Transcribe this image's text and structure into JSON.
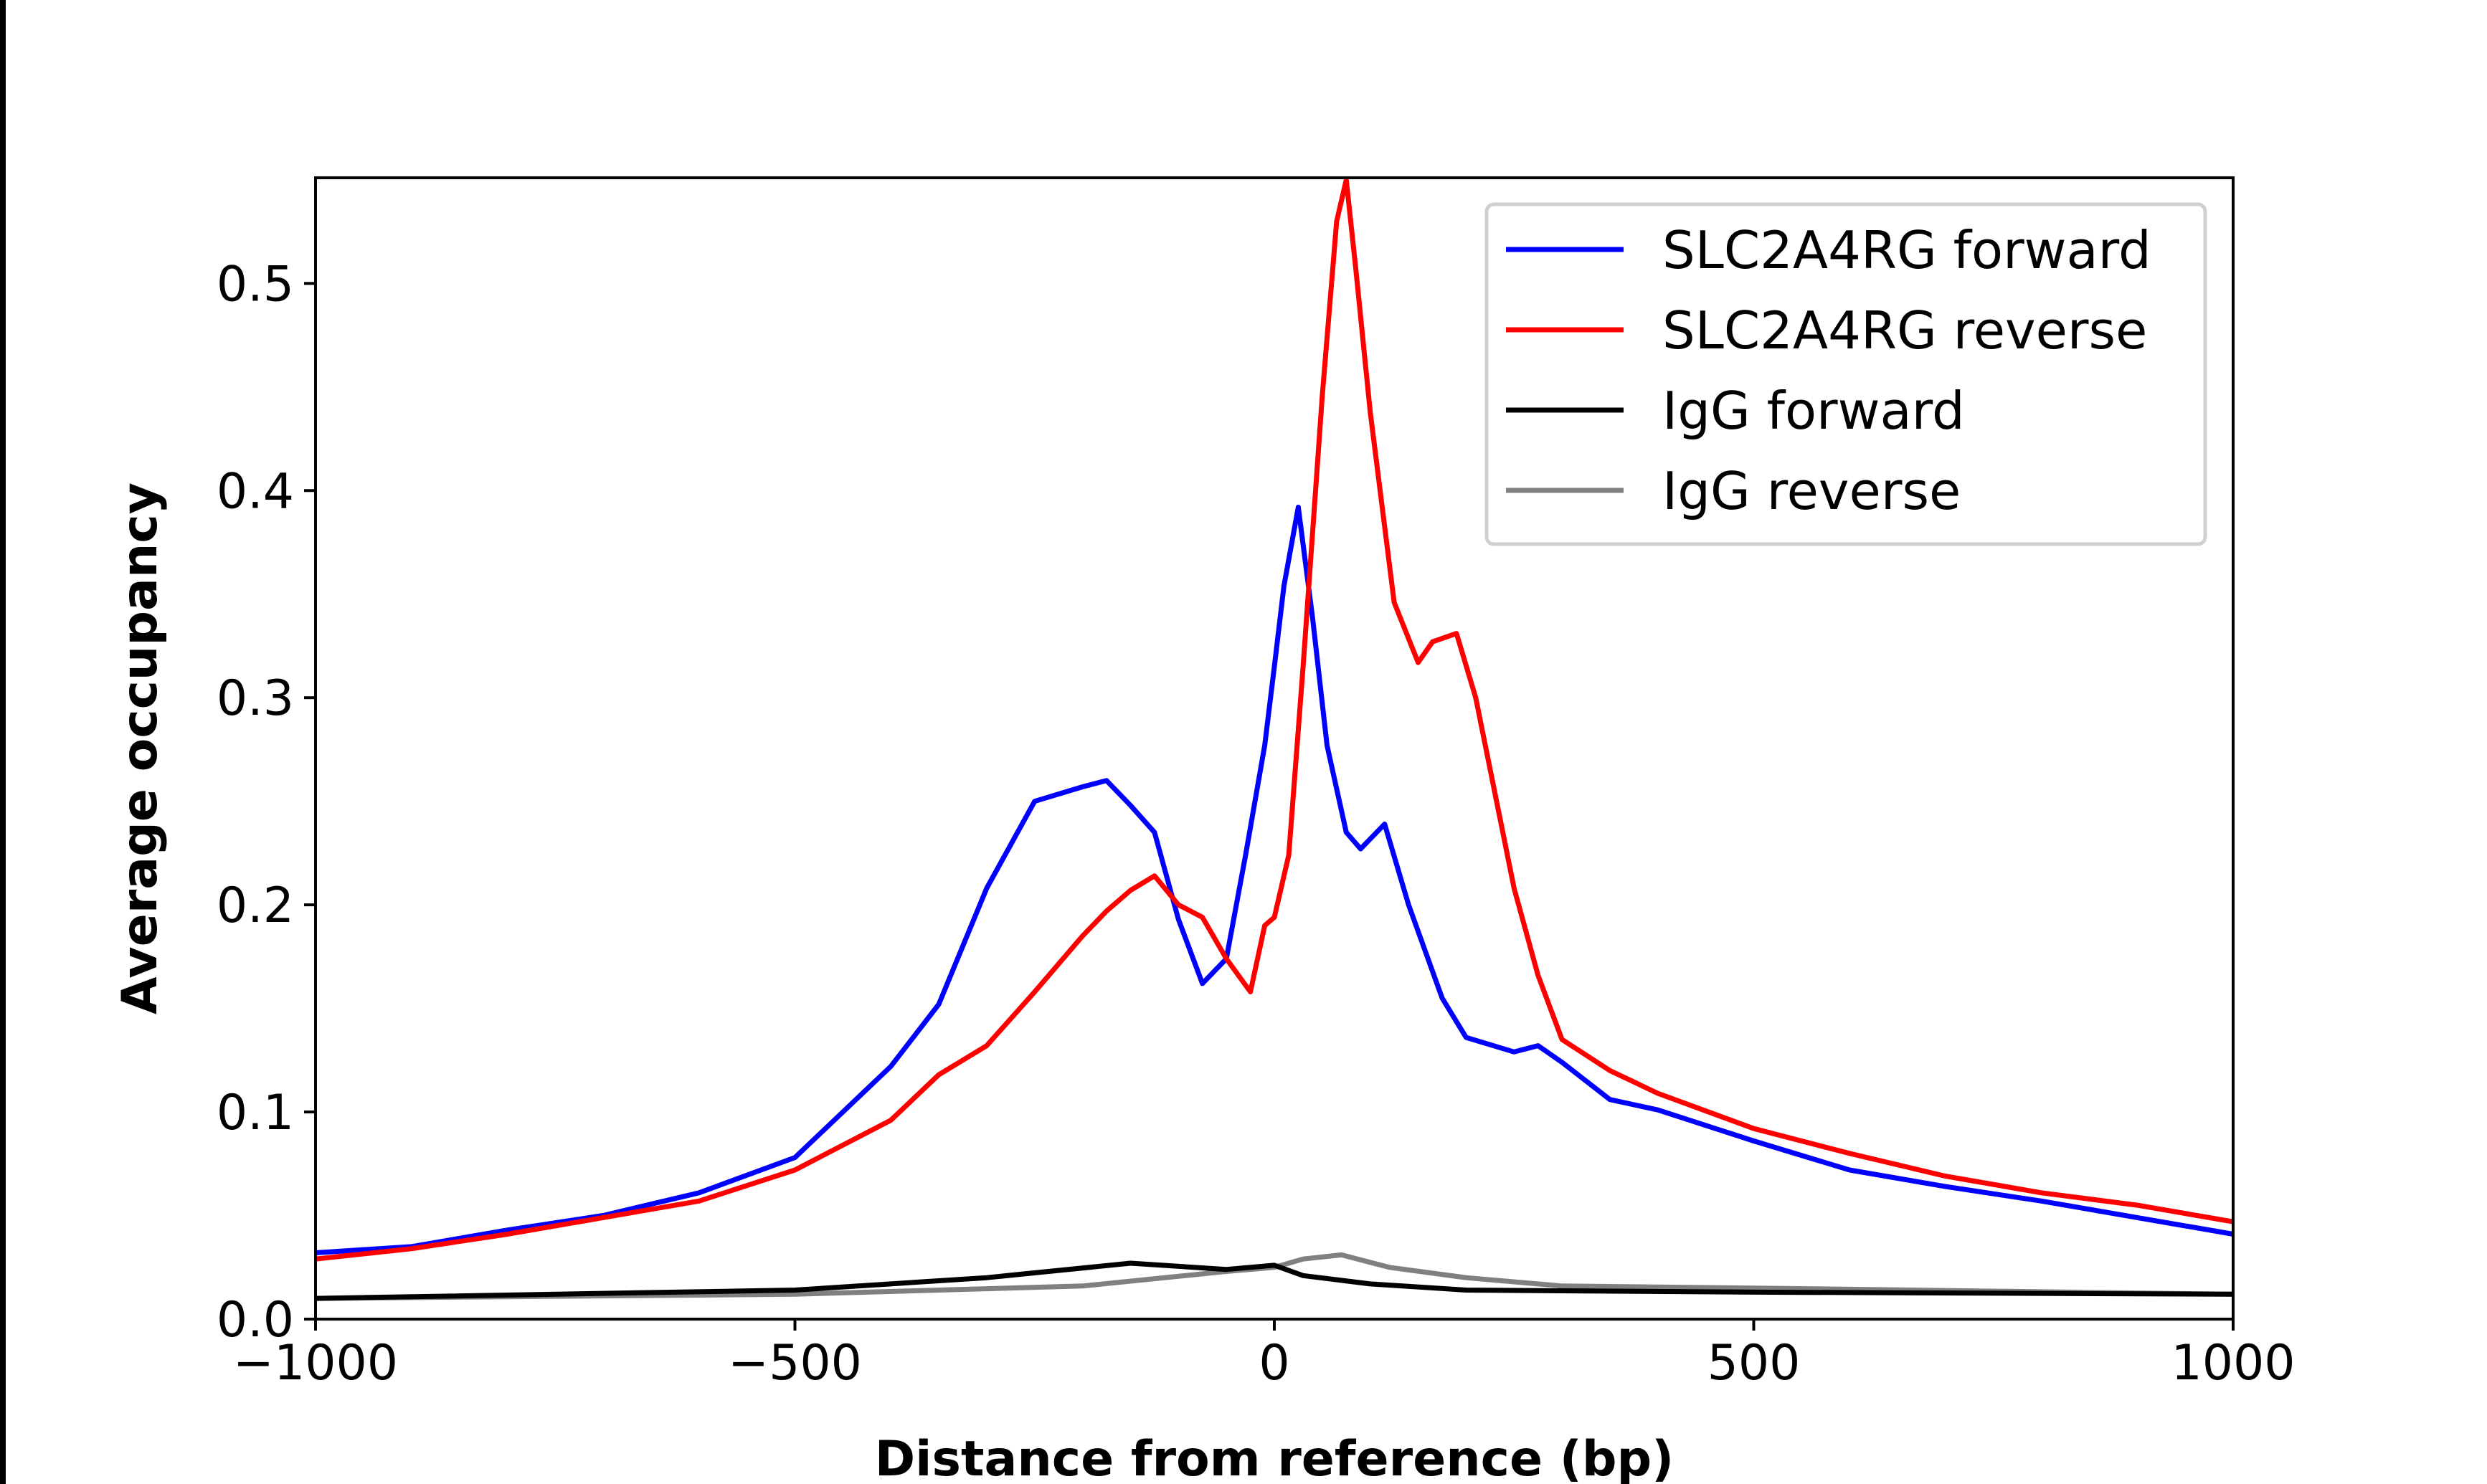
{
  "chart_data": {
    "type": "line",
    "title": "",
    "xlabel": "Distance from reference (bp)",
    "ylabel": "Average occupancy",
    "xlim": [
      -1000,
      1000
    ],
    "ylim": [
      0,
      0.551
    ],
    "xticks": [
      -1000,
      -500,
      0,
      500,
      1000
    ],
    "xtick_labels": [
      "−1000",
      "−500",
      "0",
      "500",
      "1000"
    ],
    "yticks": [
      0.0,
      0.1,
      0.2,
      0.3,
      0.4,
      0.5
    ],
    "ytick_labels": [
      "0.0",
      "0.1",
      "0.2",
      "0.3",
      "0.4",
      "0.5"
    ],
    "grid": false,
    "legend_position": "top-right",
    "series": [
      {
        "name": "SLC2A4RG forward",
        "color": "#0000ff",
        "x": [
          -1000,
          -900,
          -800,
          -700,
          -600,
          -500,
          -450,
          -400,
          -350,
          -300,
          -250,
          -200,
          -175,
          -150,
          -125,
          -100,
          -75,
          -50,
          -30,
          -10,
          0,
          10,
          25,
          40,
          55,
          75,
          90,
          115,
          140,
          175,
          200,
          250,
          275,
          300,
          350,
          400,
          500,
          600,
          700,
          800,
          900,
          1000
        ],
        "y": [
          0.032,
          0.035,
          0.043,
          0.05,
          0.061,
          0.078,
          0.1,
          0.122,
          0.152,
          0.208,
          0.25,
          0.257,
          0.26,
          0.248,
          0.235,
          0.193,
          0.162,
          0.174,
          0.224,
          0.277,
          0.315,
          0.354,
          0.392,
          0.338,
          0.277,
          0.235,
          0.227,
          0.239,
          0.2,
          0.155,
          0.136,
          0.129,
          0.132,
          0.124,
          0.106,
          0.101,
          0.086,
          0.072,
          0.064,
          0.057,
          0.049,
          0.041
        ]
      },
      {
        "name": "SLC2A4RG reverse",
        "color": "#ff0000",
        "x": [
          -1000,
          -900,
          -800,
          -700,
          -600,
          -500,
          -400,
          -350,
          -300,
          -250,
          -200,
          -175,
          -150,
          -125,
          -100,
          -75,
          -50,
          -25,
          -10,
          0,
          15,
          30,
          50,
          65,
          75,
          85,
          100,
          125,
          150,
          165,
          190,
          210,
          250,
          275,
          300,
          350,
          400,
          500,
          600,
          700,
          800,
          900,
          1000
        ],
        "y": [
          0.029,
          0.034,
          0.041,
          0.049,
          0.057,
          0.072,
          0.096,
          0.118,
          0.132,
          0.158,
          0.185,
          0.197,
          0.207,
          0.214,
          0.2,
          0.194,
          0.174,
          0.158,
          0.19,
          0.194,
          0.224,
          0.315,
          0.446,
          0.53,
          0.55,
          0.507,
          0.438,
          0.346,
          0.317,
          0.327,
          0.331,
          0.3,
          0.208,
          0.166,
          0.135,
          0.12,
          0.109,
          0.092,
          0.08,
          0.069,
          0.061,
          0.055,
          0.047
        ]
      },
      {
        "name": "IgG forward",
        "color": "#000000",
        "x": [
          -1000,
          -500,
          -300,
          -150,
          -50,
          0,
          30,
          100,
          200,
          500,
          1000
        ],
        "y": [
          0.01,
          0.014,
          0.02,
          0.027,
          0.024,
          0.026,
          0.021,
          0.017,
          0.014,
          0.013,
          0.012
        ]
      },
      {
        "name": "IgG reverse",
        "color": "#808080",
        "x": [
          -1000,
          -500,
          -200,
          -50,
          0,
          30,
          70,
          120,
          200,
          300,
          500,
          1000
        ],
        "y": [
          0.01,
          0.012,
          0.016,
          0.023,
          0.025,
          0.029,
          0.031,
          0.025,
          0.02,
          0.016,
          0.015,
          0.012
        ]
      }
    ]
  }
}
